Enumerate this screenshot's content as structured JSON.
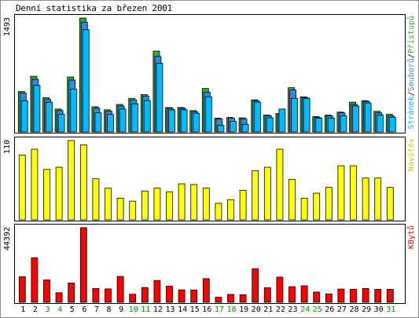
{
  "title": "Denní statistika za březen 2001",
  "colors": {
    "pristupu": "#33aa33",
    "souboru": "#3388dd",
    "stranek": "#00bbff",
    "navstev": "#ffff00",
    "kbytu": "#ff0000",
    "weekend_label": "#009900"
  },
  "weekend_days": [
    3,
    4,
    10,
    11,
    17,
    18,
    24,
    25,
    31
  ],
  "chart_data": [
    {
      "type": "bar",
      "categories": [
        "1",
        "2",
        "3",
        "4",
        "5",
        "6",
        "7",
        "8",
        "9",
        "10",
        "11",
        "12",
        "13",
        "14",
        "15",
        "16",
        "17",
        "18",
        "19",
        "20",
        "21",
        "22",
        "23",
        "24",
        "25",
        "26",
        "27",
        "28",
        "29",
        "30",
        "31"
      ],
      "ylabel": "1493",
      "ylim": [
        0,
        1493
      ],
      "legend": [
        {
          "name": "Přístupů",
          "color": "#33aa33"
        },
        {
          "name": "Souborů",
          "color": "#3388dd"
        },
        {
          "name": "Stránek",
          "color": "#00bbff"
        }
      ],
      "legend_sep": "/",
      "series": [
        {
          "name": "Přístupů",
          "values": [
            530,
            730,
            450,
            300,
            720,
            1493,
            330,
            290,
            360,
            440,
            490,
            1060,
            320,
            320,
            280,
            570,
            180,
            190,
            185,
            420,
            220,
            240,
            580,
            460,
            200,
            220,
            260,
            390,
            410,
            270,
            230
          ]
        },
        {
          "name": "Souborů",
          "values": [
            510,
            690,
            430,
            280,
            680,
            1440,
            310,
            270,
            340,
            420,
            470,
            990,
            310,
            310,
            265,
            520,
            170,
            180,
            170,
            410,
            210,
            240,
            550,
            450,
            190,
            210,
            250,
            360,
            400,
            250,
            210
          ]
        },
        {
          "name": "Stránek",
          "values": [
            410,
            610,
            390,
            230,
            560,
            1340,
            250,
            230,
            300,
            370,
            410,
            900,
            290,
            290,
            245,
            460,
            85,
            140,
            100,
            390,
            185,
            300,
            440,
            440,
            180,
            180,
            210,
            340,
            380,
            220,
            190
          ]
        }
      ]
    },
    {
      "type": "bar",
      "categories": [
        "1",
        "2",
        "3",
        "4",
        "5",
        "6",
        "7",
        "8",
        "9",
        "10",
        "11",
        "12",
        "13",
        "14",
        "15",
        "16",
        "17",
        "18",
        "19",
        "20",
        "21",
        "22",
        "23",
        "24",
        "25",
        "26",
        "27",
        "28",
        "29",
        "30",
        "31"
      ],
      "ylabel": "110",
      "ylim": [
        0,
        110
      ],
      "legend": [
        {
          "name": "Návštěv",
          "color": "#ffff00"
        }
      ],
      "series": [
        {
          "name": "Návštěv",
          "values": [
            90,
            98,
            70,
            73,
            110,
            104,
            57,
            44,
            30,
            26,
            40,
            44,
            39,
            50,
            49,
            44,
            23,
            28,
            41,
            68,
            73,
            98,
            56,
            30,
            37,
            45,
            75,
            75,
            58,
            58,
            45
          ]
        }
      ]
    },
    {
      "type": "bar",
      "categories": [
        "1",
        "2",
        "3",
        "4",
        "5",
        "6",
        "7",
        "8",
        "9",
        "10",
        "11",
        "12",
        "13",
        "14",
        "15",
        "16",
        "17",
        "18",
        "19",
        "20",
        "21",
        "22",
        "23",
        "24",
        "25",
        "26",
        "27",
        "28",
        "29",
        "30",
        "31"
      ],
      "ylabel": "44392",
      "ylim": [
        0,
        44392
      ],
      "legend": [
        {
          "name": "KBytů",
          "color": "#ff0000"
        }
      ],
      "series": [
        {
          "name": "KBytů",
          "values": [
            15200,
            26500,
            13300,
            5700,
            11500,
            44392,
            8200,
            8000,
            15400,
            4800,
            8800,
            13000,
            9600,
            7400,
            7300,
            14100,
            3000,
            4700,
            4500,
            20000,
            8700,
            15000,
            9300,
            9800,
            6100,
            5000,
            7900,
            7800,
            8200,
            7700,
            7700
          ]
        }
      ]
    }
  ]
}
